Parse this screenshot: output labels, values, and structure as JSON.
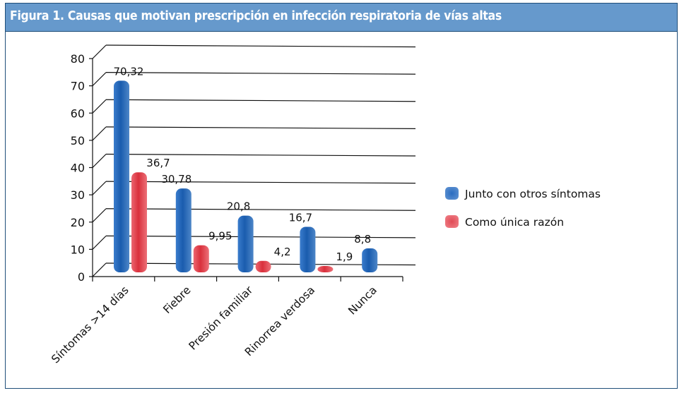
{
  "figure": {
    "title": "Figura 1.  Causas que motivan prescripción en infección respiratoria de vías altas"
  },
  "chart_data": {
    "type": "bar",
    "title": "Figura 1.  Causas que motivan prescripción en infección respiratoria de vías altas",
    "xlabel": "",
    "ylabel": "",
    "categories": [
      "Síntomas >14 días",
      "Fiebre",
      "Presión familiar",
      "Rinorrea verdosa",
      "Nunca"
    ],
    "series": [
      {
        "name": "Junto con otros síntomas",
        "color": "#1f63b5",
        "values": [
          70.32,
          30.78,
          20.8,
          16.7,
          8.8
        ],
        "labels": [
          "70,32",
          "30,78",
          "20,8",
          "16,7",
          "8,8"
        ]
      },
      {
        "name": "Como única razón",
        "color": "#e0404b",
        "values": [
          36.7,
          9.95,
          4.2,
          1.9,
          null
        ],
        "labels": [
          "36,7",
          "9,95",
          "4,2",
          "1,9",
          ""
        ]
      }
    ],
    "ylim": [
      0,
      80
    ],
    "yticks": [
      0,
      10,
      20,
      30,
      40,
      50,
      60,
      70,
      80
    ],
    "grid": true,
    "style": "3d-cylinder",
    "legend_position": "right"
  }
}
